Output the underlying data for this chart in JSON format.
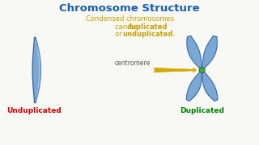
{
  "title": "Chromosome Structure",
  "title_color": "#1a5fb4",
  "subtitle_line1": "Condensed chromosomes",
  "subtitle_line2_plain": "can be ",
  "subtitle_line2_bold": "duplicated",
  "subtitle_line3_plain": "or ",
  "subtitle_line3_bold": "unduplicated.",
  "subtitle_color": "#c8a000",
  "label_unduplicated": "Unduplicated",
  "label_duplicated": "Duplicated",
  "label_unduplicated_color": "#cc0000",
  "label_duplicated_color": "#008000",
  "centromere_label": "centromere",
  "centromere_color": "#555555",
  "arrow_color": "#d4aa00",
  "chromosome_color": "#7ba7d4",
  "chromosome_edge_color": "#3a6aaa",
  "centromere_dot_color": "#44aa44",
  "background_color": "#f8f8f4"
}
